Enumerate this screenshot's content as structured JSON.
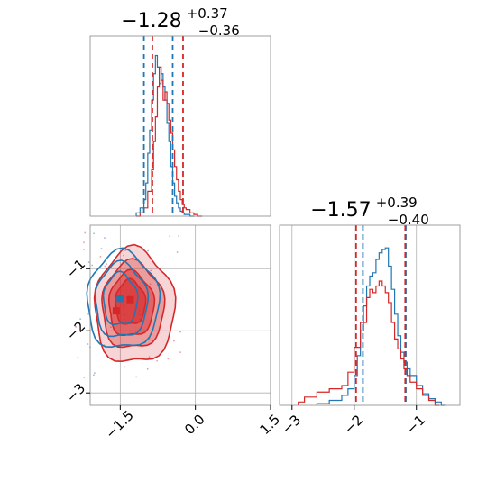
{
  "colors": {
    "blue": "#1f77b4",
    "red": "#d62728",
    "grid": "#b0b0b0",
    "frame": "#000000"
  },
  "chart_data": [
    {
      "type": "histogram",
      "panel": "top-left",
      "title": {
        "base": "−1.28",
        "sup": "+0.37",
        "sub": "−0.36"
      },
      "xlim": [
        -3.2,
        1.5
      ],
      "grid": true,
      "quantile_lines": {
        "blue": [
          -1.8,
          -1.05
        ],
        "red": [
          -1.58,
          -0.78
        ]
      },
      "series": [
        {
          "color": "blue",
          "x": [
            -2.0,
            -1.9,
            -1.8,
            -1.75,
            -1.7,
            -1.65,
            -1.6,
            -1.55,
            -1.5,
            -1.45,
            -1.4,
            -1.35,
            -1.3,
            -1.25,
            -1.2,
            -1.15,
            -1.1,
            -1.05,
            -1.0,
            -0.95,
            -0.9,
            -0.85,
            -0.8,
            -0.75,
            -0.7,
            -0.6
          ],
          "y": [
            0.02,
            0.05,
            0.1,
            0.2,
            0.38,
            0.52,
            0.7,
            0.86,
            0.97,
            0.9,
            0.8,
            0.86,
            0.78,
            0.7,
            0.56,
            0.45,
            0.3,
            0.2,
            0.12,
            0.08,
            0.05,
            0.03,
            0.02,
            0.01,
            0.01,
            0.0
          ]
        },
        {
          "color": "red",
          "x": [
            -2.0,
            -1.9,
            -1.8,
            -1.7,
            -1.6,
            -1.55,
            -1.5,
            -1.45,
            -1.4,
            -1.35,
            -1.3,
            -1.25,
            -1.2,
            -1.15,
            -1.1,
            -1.05,
            -1.0,
            -0.95,
            -0.9,
            -0.85,
            -0.8,
            -0.75,
            -0.7,
            -0.6,
            -0.5,
            -0.4
          ],
          "y": [
            0.0,
            0.02,
            0.05,
            0.15,
            0.28,
            0.45,
            0.6,
            0.78,
            0.9,
            0.82,
            0.7,
            0.75,
            0.68,
            0.58,
            0.5,
            0.4,
            0.3,
            0.22,
            0.15,
            0.1,
            0.07,
            0.05,
            0.04,
            0.02,
            0.01,
            0.0
          ]
        }
      ]
    },
    {
      "type": "histogram",
      "panel": "bottom-right",
      "title": {
        "base": "−1.57",
        "sup": "+0.39",
        "sub": "−0.40"
      },
      "xlim": [
        -3.2,
        -0.3
      ],
      "xticks": [
        "−3",
        "−2",
        "−1"
      ],
      "xtick_values": [
        -3,
        -2,
        -1
      ],
      "grid": true,
      "quantile_lines": {
        "blue": [
          -1.86,
          -1.17
        ],
        "red": [
          -1.97,
          -1.18
        ]
      },
      "series": [
        {
          "color": "blue",
          "x": [
            -2.6,
            -2.4,
            -2.2,
            -2.1,
            -2.0,
            -1.95,
            -1.9,
            -1.85,
            -1.8,
            -1.75,
            -1.7,
            -1.65,
            -1.6,
            -1.55,
            -1.5,
            -1.45,
            -1.4,
            -1.35,
            -1.3,
            -1.25,
            -1.2,
            -1.15,
            -1.1,
            -1.0,
            -0.9,
            -0.8,
            -0.7,
            -0.6
          ],
          "y": [
            0.01,
            0.03,
            0.06,
            0.1,
            0.18,
            0.3,
            0.45,
            0.6,
            0.72,
            0.78,
            0.8,
            0.88,
            0.92,
            0.94,
            0.95,
            0.84,
            0.7,
            0.55,
            0.42,
            0.32,
            0.26,
            0.22,
            0.18,
            0.12,
            0.07,
            0.04,
            0.02,
            0.0
          ]
        },
        {
          "color": "red",
          "x": [
            -2.9,
            -2.8,
            -2.6,
            -2.4,
            -2.2,
            -2.1,
            -2.0,
            -1.9,
            -1.8,
            -1.75,
            -1.7,
            -1.65,
            -1.6,
            -1.55,
            -1.5,
            -1.45,
            -1.4,
            -1.35,
            -1.3,
            -1.25,
            -1.2,
            -1.15,
            -1.1,
            -1.0,
            -0.9,
            -0.8,
            -0.7
          ],
          "y": [
            0.02,
            0.05,
            0.08,
            0.1,
            0.12,
            0.2,
            0.35,
            0.5,
            0.65,
            0.7,
            0.68,
            0.72,
            0.75,
            0.72,
            0.68,
            0.62,
            0.5,
            0.4,
            0.34,
            0.28,
            0.22,
            0.18,
            0.14,
            0.1,
            0.06,
            0.03,
            0.0
          ]
        }
      ]
    },
    {
      "type": "contour",
      "panel": "bottom-left",
      "xlim": [
        -2.1,
        1.5
      ],
      "ylim": [
        -3.2,
        -0.3
      ],
      "xticks": [
        "−1.5",
        "0.0",
        "1.5"
      ],
      "xtick_values": [
        -1.5,
        0.0,
        1.5
      ],
      "yticks": [
        "−1",
        "−2",
        "−3"
      ],
      "ytick_values": [
        -1,
        -2,
        -3
      ],
      "grid": true,
      "red_contours": [
        {
          "cx": -1.22,
          "cy": -1.62,
          "rx": 0.8,
          "ry": 0.92,
          "fill_opacity": 0.35
        },
        {
          "cx": -1.25,
          "cy": -1.6,
          "rx": 0.62,
          "ry": 0.7,
          "fill_opacity": 0.6
        },
        {
          "cx": -1.28,
          "cy": -1.58,
          "rx": 0.45,
          "ry": 0.52,
          "fill_opacity": 0.85
        },
        {
          "cx": -1.3,
          "cy": -1.55,
          "rx": 0.3,
          "ry": 0.36,
          "fill_opacity": 1.0
        }
      ],
      "blue_contours": [
        {
          "cx": -1.45,
          "cy": -1.52,
          "rx": 0.72,
          "ry": 0.78
        },
        {
          "cx": -1.48,
          "cy": -1.52,
          "rx": 0.52,
          "ry": 0.6
        },
        {
          "cx": -1.5,
          "cy": -1.5,
          "rx": 0.34,
          "ry": 0.42
        }
      ],
      "markers": [
        {
          "color": "blue",
          "x": -1.5,
          "y": -1.48
        },
        {
          "color": "red",
          "x": -1.58,
          "y": -1.68
        },
        {
          "color": "red",
          "x": -1.3,
          "y": -1.5
        }
      ]
    }
  ]
}
